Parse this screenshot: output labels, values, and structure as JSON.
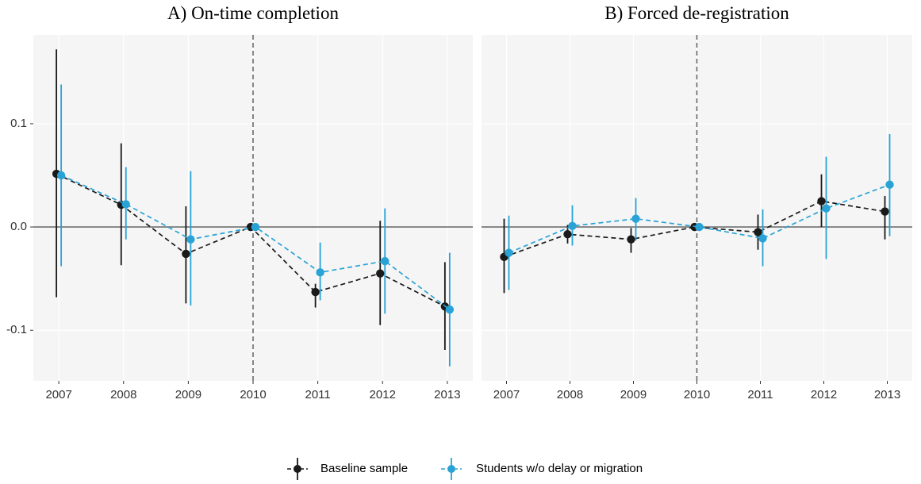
{
  "chart_data": [
    {
      "type": "errorpoint",
      "title": "A) On-time completion",
      "categories": [
        "2007",
        "2008",
        "2009",
        "2010",
        "2011",
        "2012",
        "2013"
      ],
      "ylim": [
        -0.149,
        0.186
      ],
      "yticks": [
        -0.1,
        {
          "value": 0,
          "label": "0.0"
        },
        0.1
      ],
      "grid": true,
      "hline": 0,
      "vline": "2010",
      "series": [
        {
          "name": "Baseline sample",
          "color": "#1a1a1a",
          "values": [
            0.0515,
            0.0215,
            -0.026,
            0,
            -0.063,
            -0.045,
            -0.077
          ],
          "lower": [
            -0.068,
            -0.037,
            -0.074,
            null,
            -0.078,
            -0.095,
            -0.119
          ],
          "upper": [
            0.172,
            0.081,
            0.02,
            null,
            -0.055,
            0.006,
            -0.034
          ]
        },
        {
          "name": "Students w/o delay or migration",
          "color": "#29a3d6",
          "values": [
            0.05,
            0.022,
            -0.012,
            0,
            -0.044,
            -0.033,
            -0.08
          ],
          "lower": [
            -0.038,
            -0.012,
            -0.076,
            null,
            -0.071,
            -0.084,
            -0.135
          ],
          "upper": [
            0.138,
            0.058,
            0.054,
            null,
            -0.015,
            0.018,
            -0.025
          ]
        }
      ]
    },
    {
      "type": "errorpoint",
      "title": "B) Forced de-registration",
      "categories": [
        "2007",
        "2008",
        "2009",
        "2010",
        "2011",
        "2012",
        "2013"
      ],
      "ylim": [
        -0.149,
        0.186
      ],
      "yticks": [
        -0.1,
        0,
        0.1
      ],
      "grid": true,
      "hline": 0,
      "vline": "2010",
      "series": [
        {
          "color": "#1a1a1a",
          "values": [
            -0.029,
            -0.007,
            -0.012,
            0,
            -0.005,
            0.025,
            0.015
          ],
          "lower": [
            -0.064,
            -0.016,
            -0.025,
            null,
            -0.022,
            0,
            -0.012
          ],
          "upper": [
            0.008,
            0.002,
            -0.001,
            null,
            0.012,
            0.051,
            0.03
          ]
        },
        {
          "color": "#29a3d6",
          "values": [
            -0.025,
            0.001,
            0.008,
            0,
            -0.011,
            0.018,
            0.041
          ],
          "lower": [
            -0.061,
            -0.018,
            -0.013,
            null,
            -0.038,
            -0.031,
            -0.009
          ],
          "upper": [
            0.011,
            0.021,
            0.028,
            null,
            0.017,
            0.068,
            0.09
          ]
        }
      ]
    }
  ]
}
